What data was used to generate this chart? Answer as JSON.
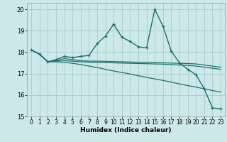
{
  "xlabel": "Humidex (Indice chaleur)",
  "background_color": "#cce8e8",
  "grid_color": "#aacccc",
  "line_color": "#1a7070",
  "xlim": [
    -0.5,
    23.5
  ],
  "ylim": [
    15,
    20.3
  ],
  "yticks": [
    15,
    16,
    17,
    18,
    19,
    20
  ],
  "xticks": [
    0,
    1,
    2,
    3,
    4,
    5,
    6,
    7,
    8,
    9,
    10,
    11,
    12,
    13,
    14,
    15,
    16,
    17,
    18,
    19,
    20,
    21,
    22,
    23
  ],
  "series": [
    {
      "y": [
        18.1,
        17.9,
        17.55,
        17.65,
        17.8,
        17.75,
        17.8,
        17.85,
        18.4,
        18.75,
        19.3,
        18.7,
        18.5,
        18.25,
        18.2,
        20.0,
        19.2,
        18.05,
        17.5,
        17.2,
        16.95,
        16.3,
        15.4,
        15.35
      ],
      "marker": true,
      "linewidth": 1.0
    },
    {
      "y": [
        18.1,
        17.9,
        17.55,
        17.6,
        17.7,
        17.65,
        17.6,
        17.58,
        17.58,
        17.57,
        17.56,
        17.55,
        17.54,
        17.53,
        17.52,
        17.51,
        17.5,
        17.49,
        17.48,
        17.47,
        17.45,
        17.4,
        17.35,
        17.3
      ],
      "marker": false,
      "linewidth": 0.9
    },
    {
      "y": [
        18.1,
        17.9,
        17.55,
        17.58,
        17.6,
        17.58,
        17.55,
        17.53,
        17.52,
        17.51,
        17.5,
        17.49,
        17.48,
        17.47,
        17.46,
        17.45,
        17.44,
        17.42,
        17.4,
        17.38,
        17.35,
        17.3,
        17.25,
        17.2
      ],
      "marker": false,
      "linewidth": 0.9
    },
    {
      "y": [
        18.1,
        17.9,
        17.55,
        17.55,
        17.52,
        17.48,
        17.42,
        17.35,
        17.28,
        17.2,
        17.12,
        17.05,
        16.98,
        16.9,
        16.82,
        16.75,
        16.68,
        16.6,
        16.52,
        16.44,
        16.37,
        16.29,
        16.21,
        16.14
      ],
      "marker": false,
      "linewidth": 0.9
    }
  ]
}
